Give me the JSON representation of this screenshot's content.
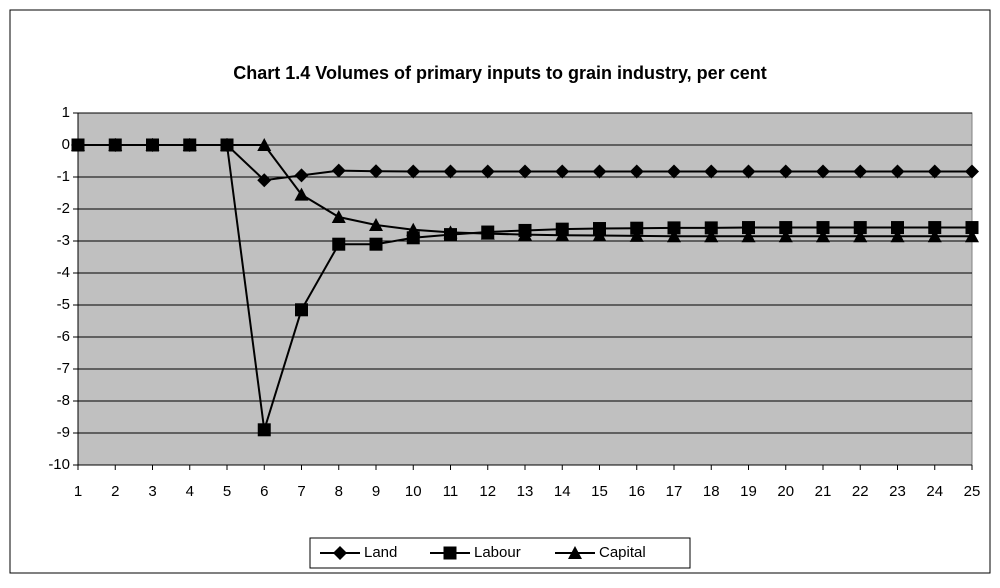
{
  "chart_data": {
    "type": "line",
    "title": "Chart 1.4 Volumes of primary inputs to grain industry, per cent",
    "categories": [
      "1",
      "2",
      "3",
      "4",
      "5",
      "6",
      "7",
      "8",
      "9",
      "10",
      "11",
      "12",
      "13",
      "14",
      "15",
      "16",
      "17",
      "18",
      "19",
      "20",
      "21",
      "22",
      "23",
      "24",
      "25"
    ],
    "series": [
      {
        "name": "Land",
        "color": "#000000",
        "marker": "diamond",
        "values": [
          0,
          0,
          0,
          0,
          0,
          -1.1,
          -0.95,
          -0.8,
          -0.82,
          -0.83,
          -0.83,
          -0.83,
          -0.83,
          -0.83,
          -0.83,
          -0.83,
          -0.83,
          -0.83,
          -0.83,
          -0.83,
          -0.83,
          -0.83,
          -0.83,
          -0.83,
          -0.83
        ]
      },
      {
        "name": "Labour",
        "color": "#000000",
        "marker": "square",
        "values": [
          0,
          0,
          0,
          0,
          0,
          -8.9,
          -5.15,
          -3.1,
          -3.1,
          -2.9,
          -2.8,
          -2.72,
          -2.67,
          -2.63,
          -2.61,
          -2.6,
          -2.59,
          -2.59,
          -2.58,
          -2.58,
          -2.58,
          -2.58,
          -2.58,
          -2.58,
          -2.58
        ]
      },
      {
        "name": "Capital",
        "color": "#000000",
        "marker": "triangle",
        "values": [
          0,
          0,
          0,
          0,
          0,
          0,
          -1.55,
          -2.25,
          -2.5,
          -2.65,
          -2.73,
          -2.77,
          -2.8,
          -2.82,
          -2.83,
          -2.84,
          -2.85,
          -2.85,
          -2.85,
          -2.85,
          -2.85,
          -2.85,
          -2.85,
          -2.85,
          -2.85
        ]
      }
    ],
    "ylim": [
      -10,
      1
    ],
    "yticks": [
      -10,
      -9,
      -8,
      -7,
      -6,
      -5,
      -4,
      -3,
      -2,
      -1,
      0,
      1
    ],
    "grid": true,
    "plot_background": "#c0c0c0",
    "legend": "bottom"
  }
}
